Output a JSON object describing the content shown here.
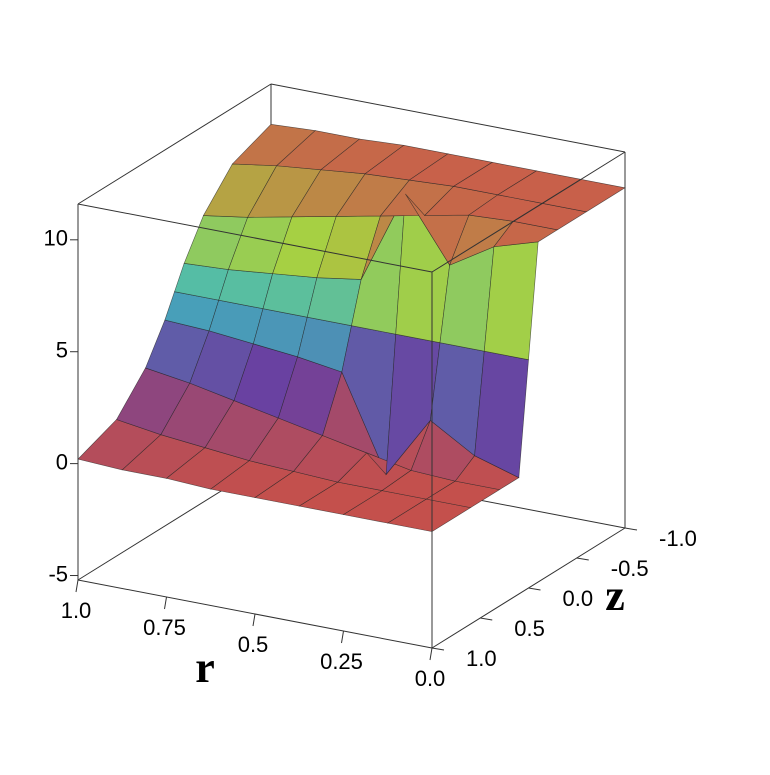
{
  "chart_data": {
    "type": "surface3d",
    "xlabel": "r",
    "ylabel": "z",
    "r": [
      1,
      0.875,
      0.75,
      0.625,
      0.5,
      0.375,
      0.25,
      0.125,
      0
    ],
    "z": [
      1,
      0.6,
      0.3,
      0.1,
      0,
      -0.1,
      -0.3,
      -0.6,
      -1
    ],
    "values": [
      [
        0.2,
        0.9,
        2.4,
        4.0,
        5,
        6.0,
        7.6,
        9.1,
        9.8
      ],
      [
        0.1,
        0.6,
        2.1,
        3.9,
        5,
        6.1,
        7.9,
        9.4,
        9.9
      ],
      [
        0.1,
        0.4,
        1.7,
        3.7,
        5,
        6.3,
        8.3,
        9.6,
        9.9
      ],
      [
        0.0,
        0.2,
        1.3,
        3.5,
        5,
        6.5,
        8.7,
        9.8,
        10.0
      ],
      [
        0.0,
        0.1,
        0.9,
        3.2,
        5,
        6.8,
        9.1,
        9.9,
        10.0
      ],
      [
        0.0,
        0.0,
        0.5,
        -1,
        5,
        11,
        9.5,
        10.0,
        10.0
      ],
      [
        0.0,
        0.0,
        0.1,
        1.8,
        5,
        8.2,
        9.9,
        10.0,
        10.0
      ],
      [
        0.0,
        0.0,
        0.0,
        0.6,
        5,
        9.4,
        10.0,
        10.0,
        10.0
      ],
      [
        0.0,
        0.0,
        0.0,
        0.0,
        5,
        10.0,
        10.0,
        10.0,
        10.0
      ]
    ],
    "xlim": [
      1,
      0
    ],
    "ylim": [
      1,
      -1
    ],
    "vlim": [
      -5.2,
      11.6
    ],
    "xticks": [
      {
        "value": 1,
        "label": "1.0"
      },
      0.75,
      0.5,
      0.25,
      {
        "value": 0,
        "label": "0.0"
      }
    ],
    "yticks": [
      {
        "value": 1,
        "label": "1.0"
      },
      0.5,
      {
        "value": 0,
        "label": "0.0"
      },
      -0.5,
      {
        "value": -1,
        "label": "-1.0"
      }
    ],
    "vticks": [
      -5,
      0,
      5,
      10
    ],
    "colorscale": [
      "#c4504c",
      "#6a3fa0",
      "#3fb8c0",
      "#a8d040",
      "#c8604a"
    ]
  }
}
